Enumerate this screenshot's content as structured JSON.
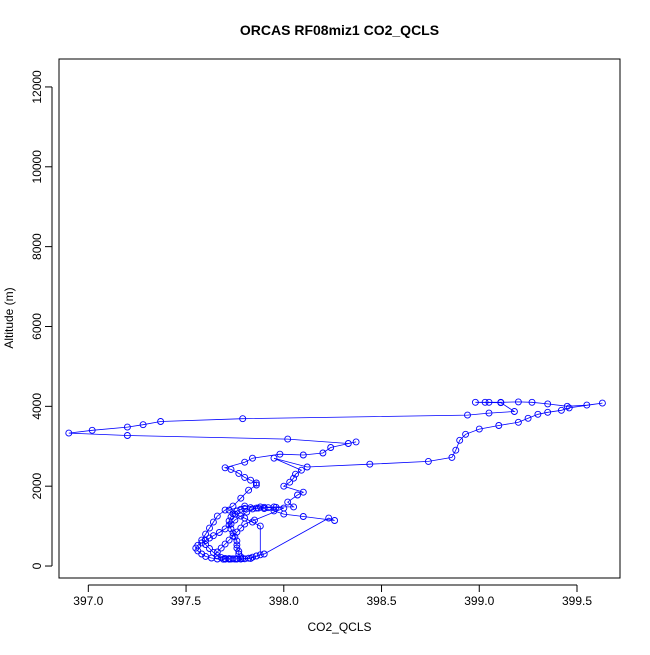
{
  "chart_data": {
    "type": "scatter",
    "title": "ORCAS RF08miz1 CO2_QCLS",
    "xlabel": "CO2_QCLS",
    "ylabel": "Altitude (m)",
    "xlim": [
      396.85,
      399.72
    ],
    "ylim": [
      -300,
      12700
    ],
    "xticks": [
      "397.0",
      "397.5",
      "398.0",
      "398.5",
      "399.0",
      "399.5"
    ],
    "xtick_values": [
      397.0,
      397.5,
      398.0,
      398.5,
      399.0,
      399.5
    ],
    "yticks": [
      "0",
      "2000",
      "4000",
      "6000",
      "8000",
      "10000",
      "12000"
    ],
    "ytick_values": [
      0,
      2000,
      4000,
      6000,
      8000,
      10000,
      12000
    ],
    "grid": false,
    "legend": "none",
    "point_marker": "open-circle",
    "connected_by_line": true,
    "series_color": "#0000ff",
    "points": [
      [
        397.7,
        170
      ],
      [
        397.73,
        175
      ],
      [
        397.76,
        180
      ],
      [
        397.79,
        185
      ],
      [
        397.82,
        195
      ],
      [
        397.84,
        220
      ],
      [
        397.86,
        250
      ],
      [
        397.9,
        300
      ],
      [
        398.23,
        1200
      ],
      [
        398.26,
        1140
      ],
      [
        398.1,
        1240
      ],
      [
        398.0,
        1300
      ],
      [
        397.95,
        1380
      ],
      [
        397.9,
        1440
      ],
      [
        397.86,
        1450
      ],
      [
        397.83,
        1460
      ],
      [
        397.8,
        1440
      ],
      [
        397.78,
        1420
      ],
      [
        397.76,
        1380
      ],
      [
        397.74,
        1310
      ],
      [
        397.73,
        1230
      ],
      [
        397.72,
        1130
      ],
      [
        397.72,
        1030
      ],
      [
        397.73,
        930
      ],
      [
        397.74,
        830
      ],
      [
        397.75,
        730
      ],
      [
        397.76,
        630
      ],
      [
        397.76,
        530
      ],
      [
        397.76,
        450
      ],
      [
        397.77,
        370
      ],
      [
        397.77,
        300
      ],
      [
        397.78,
        230
      ],
      [
        397.78,
        180
      ],
      [
        397.75,
        175
      ],
      [
        397.72,
        170
      ],
      [
        397.69,
        170
      ],
      [
        397.66,
        175
      ],
      [
        397.63,
        200
      ],
      [
        397.6,
        240
      ],
      [
        397.58,
        300
      ],
      [
        397.56,
        380
      ],
      [
        397.55,
        450
      ],
      [
        397.56,
        520
      ],
      [
        397.58,
        580
      ],
      [
        397.6,
        640
      ],
      [
        397.62,
        700
      ],
      [
        397.64,
        760
      ],
      [
        397.67,
        840
      ],
      [
        397.7,
        930
      ],
      [
        397.73,
        1050
      ],
      [
        397.75,
        1150
      ],
      [
        397.78,
        1250
      ],
      [
        397.81,
        1350
      ],
      [
        397.84,
        1430
      ],
      [
        397.87,
        1450
      ],
      [
        397.9,
        1470
      ],
      [
        397.95,
        1480
      ],
      [
        398.05,
        1480
      ],
      [
        398.02,
        1600
      ],
      [
        398.07,
        1780
      ],
      [
        398.1,
        1850
      ],
      [
        398.0,
        2000
      ],
      [
        398.03,
        2100
      ],
      [
        398.05,
        2200
      ],
      [
        398.06,
        2300
      ],
      [
        398.09,
        2400
      ],
      [
        397.95,
        2700
      ],
      [
        398.12,
        2480
      ],
      [
        398.44,
        2550
      ],
      [
        398.74,
        2620
      ],
      [
        398.86,
        2720
      ],
      [
        398.88,
        2900
      ],
      [
        398.9,
        3150
      ],
      [
        398.93,
        3300
      ],
      [
        399.0,
        3430
      ],
      [
        399.1,
        3520
      ],
      [
        399.2,
        3600
      ],
      [
        399.25,
        3700
      ],
      [
        399.3,
        3800
      ],
      [
        399.35,
        3850
      ],
      [
        399.42,
        3900
      ],
      [
        399.46,
        3960
      ],
      [
        399.63,
        4080
      ],
      [
        399.55,
        4030
      ],
      [
        399.45,
        4000
      ],
      [
        399.35,
        4060
      ],
      [
        399.27,
        4100
      ],
      [
        399.2,
        4110
      ],
      [
        399.11,
        4100
      ],
      [
        399.05,
        4100
      ],
      [
        399.03,
        4100
      ],
      [
        398.98,
        4100
      ],
      [
        399.11,
        4090
      ],
      [
        399.18,
        3870
      ],
      [
        399.05,
        3830
      ],
      [
        398.94,
        3780
      ],
      [
        397.79,
        3690
      ],
      [
        397.37,
        3620
      ],
      [
        397.28,
        3540
      ],
      [
        397.2,
        3480
      ],
      [
        397.02,
        3400
      ],
      [
        396.9,
        3330
      ],
      [
        397.2,
        3270
      ],
      [
        398.02,
        3180
      ],
      [
        398.33,
        3070
      ],
      [
        398.37,
        3110
      ],
      [
        398.24,
        2970
      ],
      [
        398.2,
        2830
      ],
      [
        398.1,
        2780
      ],
      [
        397.98,
        2800
      ],
      [
        397.84,
        2700
      ],
      [
        397.8,
        2600
      ],
      [
        397.7,
        2460
      ],
      [
        397.73,
        2420
      ],
      [
        397.77,
        2320
      ],
      [
        397.8,
        2220
      ],
      [
        397.83,
        2150
      ],
      [
        397.86,
        2080
      ],
      [
        397.86,
        2030
      ],
      [
        397.82,
        1900
      ],
      [
        397.78,
        1700
      ],
      [
        397.74,
        1500
      ],
      [
        397.7,
        1400
      ],
      [
        397.66,
        1250
      ],
      [
        397.64,
        1100
      ],
      [
        397.62,
        950
      ],
      [
        397.6,
        800
      ],
      [
        397.58,
        650
      ],
      [
        397.6,
        540
      ],
      [
        397.62,
        440
      ],
      [
        397.64,
        340
      ],
      [
        397.66,
        260
      ],
      [
        397.68,
        210
      ],
      [
        397.7,
        190
      ],
      [
        397.72,
        185
      ],
      [
        397.74,
        180
      ],
      [
        397.76,
        175
      ],
      [
        397.78,
        175
      ],
      [
        397.8,
        180
      ],
      [
        397.83,
        190
      ],
      [
        397.88,
        280
      ],
      [
        397.88,
        1000
      ],
      [
        397.84,
        1100
      ],
      [
        397.8,
        1200
      ],
      [
        397.75,
        1300
      ],
      [
        397.72,
        1400
      ],
      [
        397.8,
        1500
      ],
      [
        397.88,
        1480
      ],
      [
        397.92,
        1460
      ],
      [
        397.96,
        1470
      ],
      [
        398.0,
        1450
      ],
      [
        397.85,
        1150
      ],
      [
        397.8,
        1050
      ],
      [
        397.78,
        950
      ],
      [
        397.76,
        850
      ],
      [
        397.74,
        750
      ],
      [
        397.72,
        650
      ],
      [
        397.7,
        550
      ],
      [
        397.68,
        450
      ],
      [
        397.66,
        350
      ]
    ]
  }
}
